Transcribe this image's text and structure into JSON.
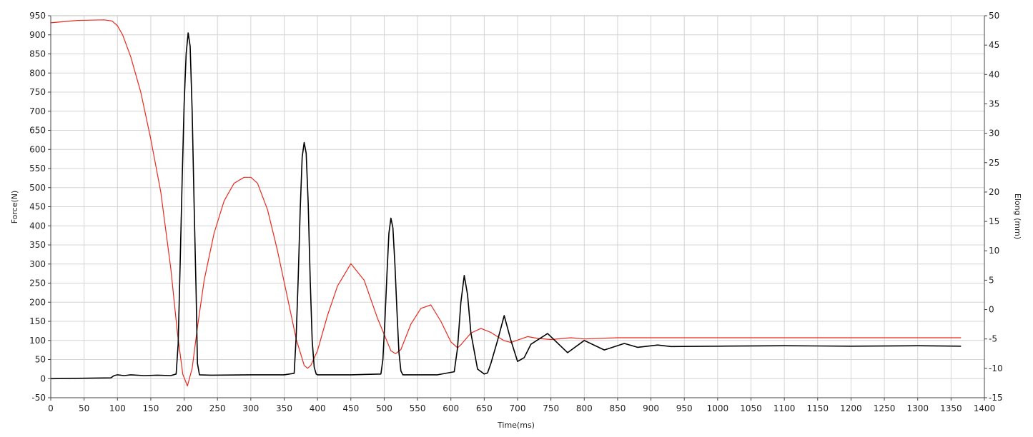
{
  "chart_data": {
    "type": "line",
    "title": "",
    "xlabel": "Time(ms)",
    "ylabel_left": "Force(N)",
    "ylabel_right": "Elong (mm)",
    "xlim": [
      0,
      1400
    ],
    "ylim_left": [
      -50,
      950
    ],
    "ylim_right": [
      -15,
      50
    ],
    "grid": true,
    "legend": "none",
    "x_ticks": [
      "0",
      "50",
      "100",
      "150",
      "200",
      "250",
      "300",
      "350",
      "400",
      "450",
      "500",
      "550",
      "600",
      "650",
      "700",
      "750",
      "800",
      "850",
      "900",
      "950",
      "1000",
      "1050",
      "1100",
      "1150",
      "1200",
      "1250",
      "1300",
      "1350",
      "1400"
    ],
    "y_left_ticks": [
      "-50",
      "0",
      "50",
      "100",
      "150",
      "200",
      "250",
      "300",
      "350",
      "400",
      "450",
      "500",
      "550",
      "600",
      "650",
      "700",
      "750",
      "800",
      "850",
      "900",
      "950"
    ],
    "y_right_ticks": [
      "-15",
      "-10",
      "-5",
      "0",
      "5",
      "10",
      "15",
      "20",
      "25",
      "30",
      "35",
      "40",
      "45",
      "50"
    ],
    "series": [
      {
        "axis": "left",
        "color": "#000000",
        "x": [
          0,
          90,
          95,
          100,
          110,
          120,
          140,
          160,
          180,
          188,
          191,
          194,
          197,
          200,
          203,
          206,
          209,
          212,
          215,
          218,
          220,
          223,
          240,
          300,
          350,
          365,
          368,
          371,
          374,
          377,
          380,
          383,
          386,
          389,
          392,
          395,
          398,
          400,
          450,
          495,
          498,
          501,
          504,
          507,
          510,
          513,
          516,
          519,
          522,
          525,
          528,
          531,
          533,
          580,
          605,
          610,
          615,
          620,
          625,
          630,
          640,
          650,
          655,
          660,
          670,
          680,
          690,
          700,
          710,
          720,
          745,
          775,
          800,
          830,
          860,
          880,
          910,
          930,
          1000,
          1100,
          1200,
          1300,
          1365
        ],
        "y": [
          0,
          2,
          8,
          10,
          8,
          10,
          8,
          9,
          8,
          12,
          90,
          300,
          520,
          720,
          850,
          905,
          870,
          700,
          450,
          220,
          40,
          10,
          9,
          10,
          10,
          14,
          110,
          260,
          440,
          580,
          618,
          590,
          460,
          260,
          100,
          30,
          12,
          10,
          10,
          12,
          50,
          150,
          270,
          380,
          420,
          395,
          300,
          180,
          70,
          20,
          10,
          10,
          10,
          10,
          18,
          80,
          200,
          270,
          220,
          120,
          25,
          12,
          15,
          40,
          100,
          165,
          100,
          45,
          55,
          90,
          118,
          68,
          100,
          75,
          92,
          82,
          88,
          84,
          85,
          86,
          85,
          86,
          85
        ]
      },
      {
        "axis": "right",
        "color": "#e8291f",
        "x": [
          0,
          40,
          80,
          92,
          100,
          108,
          120,
          135,
          150,
          165,
          180,
          190,
          198,
          205,
          212,
          220,
          230,
          245,
          260,
          275,
          290,
          300,
          310,
          325,
          340,
          355,
          368,
          380,
          385,
          390,
          400,
          415,
          430,
          450,
          470,
          490,
          510,
          517,
          525,
          540,
          555,
          570,
          585,
          600,
          610,
          615,
          630,
          645,
          660,
          680,
          690,
          700,
          715,
          730,
          750,
          780,
          800,
          850,
          900,
          1000,
          1100,
          1200,
          1300,
          1365
        ],
        "y": [
          48.8,
          49.2,
          49.3,
          49.1,
          48.3,
          46.7,
          43.0,
          37.0,
          29.0,
          20.0,
          7.0,
          -4.0,
          -11.0,
          -13.0,
          -10.0,
          -3.0,
          5.0,
          13.0,
          18.5,
          21.5,
          22.5,
          22.5,
          21.5,
          17.0,
          10.0,
          2.0,
          -5.0,
          -9.5,
          -10.0,
          -9.5,
          -7.0,
          -1.0,
          4.0,
          7.8,
          5.0,
          -1.5,
          -7.0,
          -7.5,
          -6.8,
          -2.5,
          0.2,
          0.8,
          -2.0,
          -5.5,
          -6.5,
          -6.0,
          -4.0,
          -3.2,
          -3.9,
          -5.3,
          -5.6,
          -5.2,
          -4.6,
          -4.9,
          -5.1,
          -4.8,
          -5.0,
          -4.8,
          -4.8,
          -4.8,
          -4.8,
          -4.8,
          -4.8,
          -4.8
        ]
      }
    ]
  }
}
